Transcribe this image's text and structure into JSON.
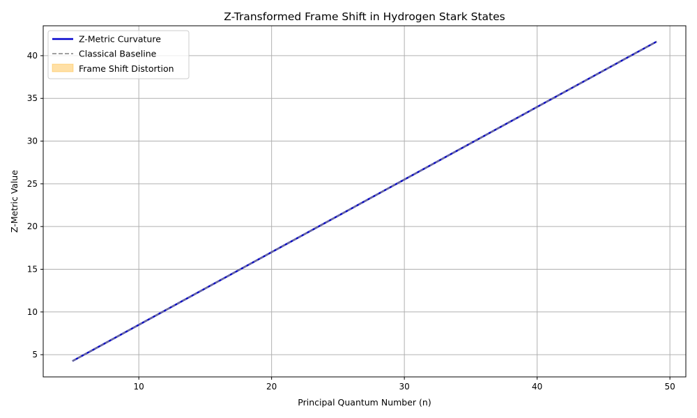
{
  "chart_data": {
    "type": "line",
    "title": "Z-Transformed Frame Shift in Hydrogen Stark States",
    "xlabel": "Principal Quantum Number (n)",
    "ylabel": "Z-Metric Value",
    "xlim": [
      2.8,
      51.2
    ],
    "ylim": [
      2.4,
      43.5
    ],
    "xticks": [
      10,
      20,
      30,
      40,
      50
    ],
    "yticks": [
      5,
      10,
      15,
      20,
      25,
      30,
      35,
      40
    ],
    "grid": true,
    "legend_position": "top-left",
    "x": [
      5,
      49
    ],
    "series": [
      {
        "name": "Z-Metric Curvature",
        "style": "solid",
        "color": "#0000cc",
        "values": [
          4.25,
          41.65
        ]
      },
      {
        "name": "Classical Baseline",
        "style": "dashed",
        "color": "#808080",
        "values": [
          4.25,
          41.65
        ]
      }
    ],
    "fill": {
      "name": "Frame Shift Distortion",
      "color": "#ffa500",
      "opacity": 0.35
    }
  }
}
